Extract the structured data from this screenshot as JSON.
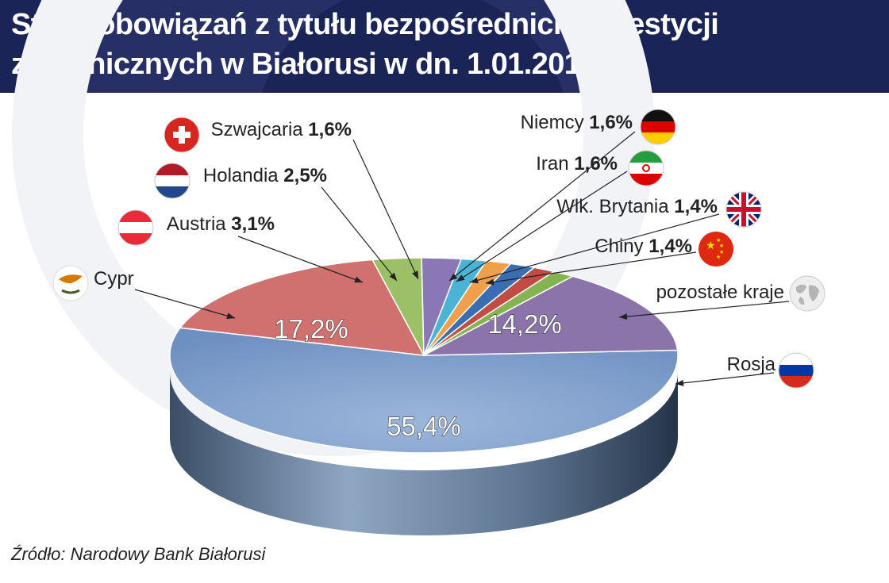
{
  "header": {
    "title_line1": "Stan zobowiązań z tytułu bezpośrednich inwestycji",
    "title_line2": "zagranicznych w Białorusi w dn. 1.01.2018 r."
  },
  "source": "Źródło: Narodowy Bank Białorusi",
  "chart_data": {
    "type": "pie",
    "title": "Stan zobowiązań z tytułu bezpośrednich inwestycji zagranicznych w Białorusi w dn. 1.01.2018 r.",
    "unit": "%",
    "slices": [
      {
        "label": "Rosja",
        "value_text": "55,4%",
        "value": 55.4,
        "color": "#7d9cc8",
        "flag": "russia-flag-icon"
      },
      {
        "label": "Cypr",
        "value_text": "17,2%",
        "value": 17.2,
        "color": "#d0716f",
        "flag": "cyprus-flag-icon"
      },
      {
        "label": "Austria",
        "value_text": "3,1%",
        "value": 3.1,
        "color": "#9cc068",
        "flag": "austria-flag-icon"
      },
      {
        "label": "Holandia",
        "value_text": "2,5%",
        "value": 2.5,
        "color": "#8a78b6",
        "flag": "netherlands-flag-icon"
      },
      {
        "label": "Szwajcaria",
        "value_text": "1,6%",
        "value": 1.6,
        "color": "#4bb3d3",
        "flag": "switzerland-flag-icon"
      },
      {
        "label": "Niemcy",
        "value_text": "1,6%",
        "value": 1.6,
        "color": "#f0a04c",
        "flag": "germany-flag-icon"
      },
      {
        "label": "Iran",
        "value_text": "1,6%",
        "value": 1.6,
        "color": "#3a6eb2",
        "flag": "iran-flag-icon"
      },
      {
        "label": "Wlk. Brytania",
        "value_text": "1,4%",
        "value": 1.4,
        "color": "#c24b44",
        "flag": "uk-flag-icon"
      },
      {
        "label": "Chiny",
        "value_text": "1,4%",
        "value": 1.4,
        "color": "#86b352",
        "flag": "china-flag-icon"
      },
      {
        "label": "pozostałe kraje",
        "value_text": "14,2%",
        "value": 14.2,
        "color": "#8a74aa",
        "flag": "globe-icon"
      }
    ],
    "shown_value_labels": [
      "55,4%",
      "17,2%",
      "14,2%"
    ]
  }
}
